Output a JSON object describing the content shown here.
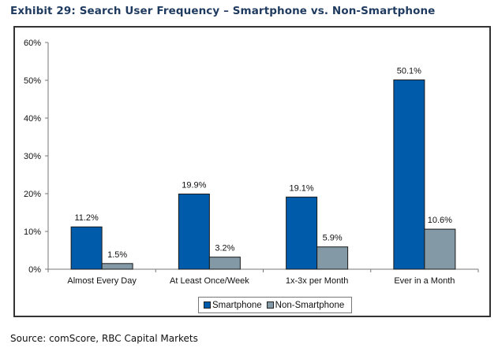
{
  "title": "Exhibit 29: Search User Frequency – Smartphone vs. Non-Smartphone",
  "source": "Source: comScore, RBC Capital Markets",
  "colors": {
    "smartphone": "#005baa",
    "non_smartphone": "#8499a6",
    "axis": "#777777",
    "title": "#1f3a5f"
  },
  "legend": {
    "items": [
      {
        "label": "Smartphone",
        "icon": "square-swatch-blue"
      },
      {
        "label": "Non-Smartphone",
        "icon": "square-swatch-grey"
      }
    ],
    "placement": "bottom-center"
  },
  "chart_data": {
    "type": "bar",
    "title": "Exhibit 29: Search User Frequency – Smartphone vs. Non-Smartphone",
    "xlabel": "",
    "ylabel": "",
    "ylim": [
      0,
      60
    ],
    "yticks": [
      0,
      10,
      20,
      30,
      40,
      50,
      60
    ],
    "ytick_labels": [
      "0%",
      "10%",
      "20%",
      "30%",
      "40%",
      "50%",
      "60%"
    ],
    "grid": false,
    "categories": [
      "Almost Every Day",
      "At Least Once/Week",
      "1x-3x per Month",
      "Ever in a Month"
    ],
    "series": [
      {
        "name": "Smartphone",
        "values": [
          11.2,
          19.9,
          19.1,
          50.1
        ],
        "labels": [
          "11.2%",
          "19.9%",
          "19.1%",
          "50.1%"
        ]
      },
      {
        "name": "Non-Smartphone",
        "values": [
          1.5,
          3.2,
          5.9,
          10.6
        ],
        "labels": [
          "1.5%",
          "3.2%",
          "5.9%",
          "10.6%"
        ]
      }
    ],
    "legend_position": "bottom"
  }
}
